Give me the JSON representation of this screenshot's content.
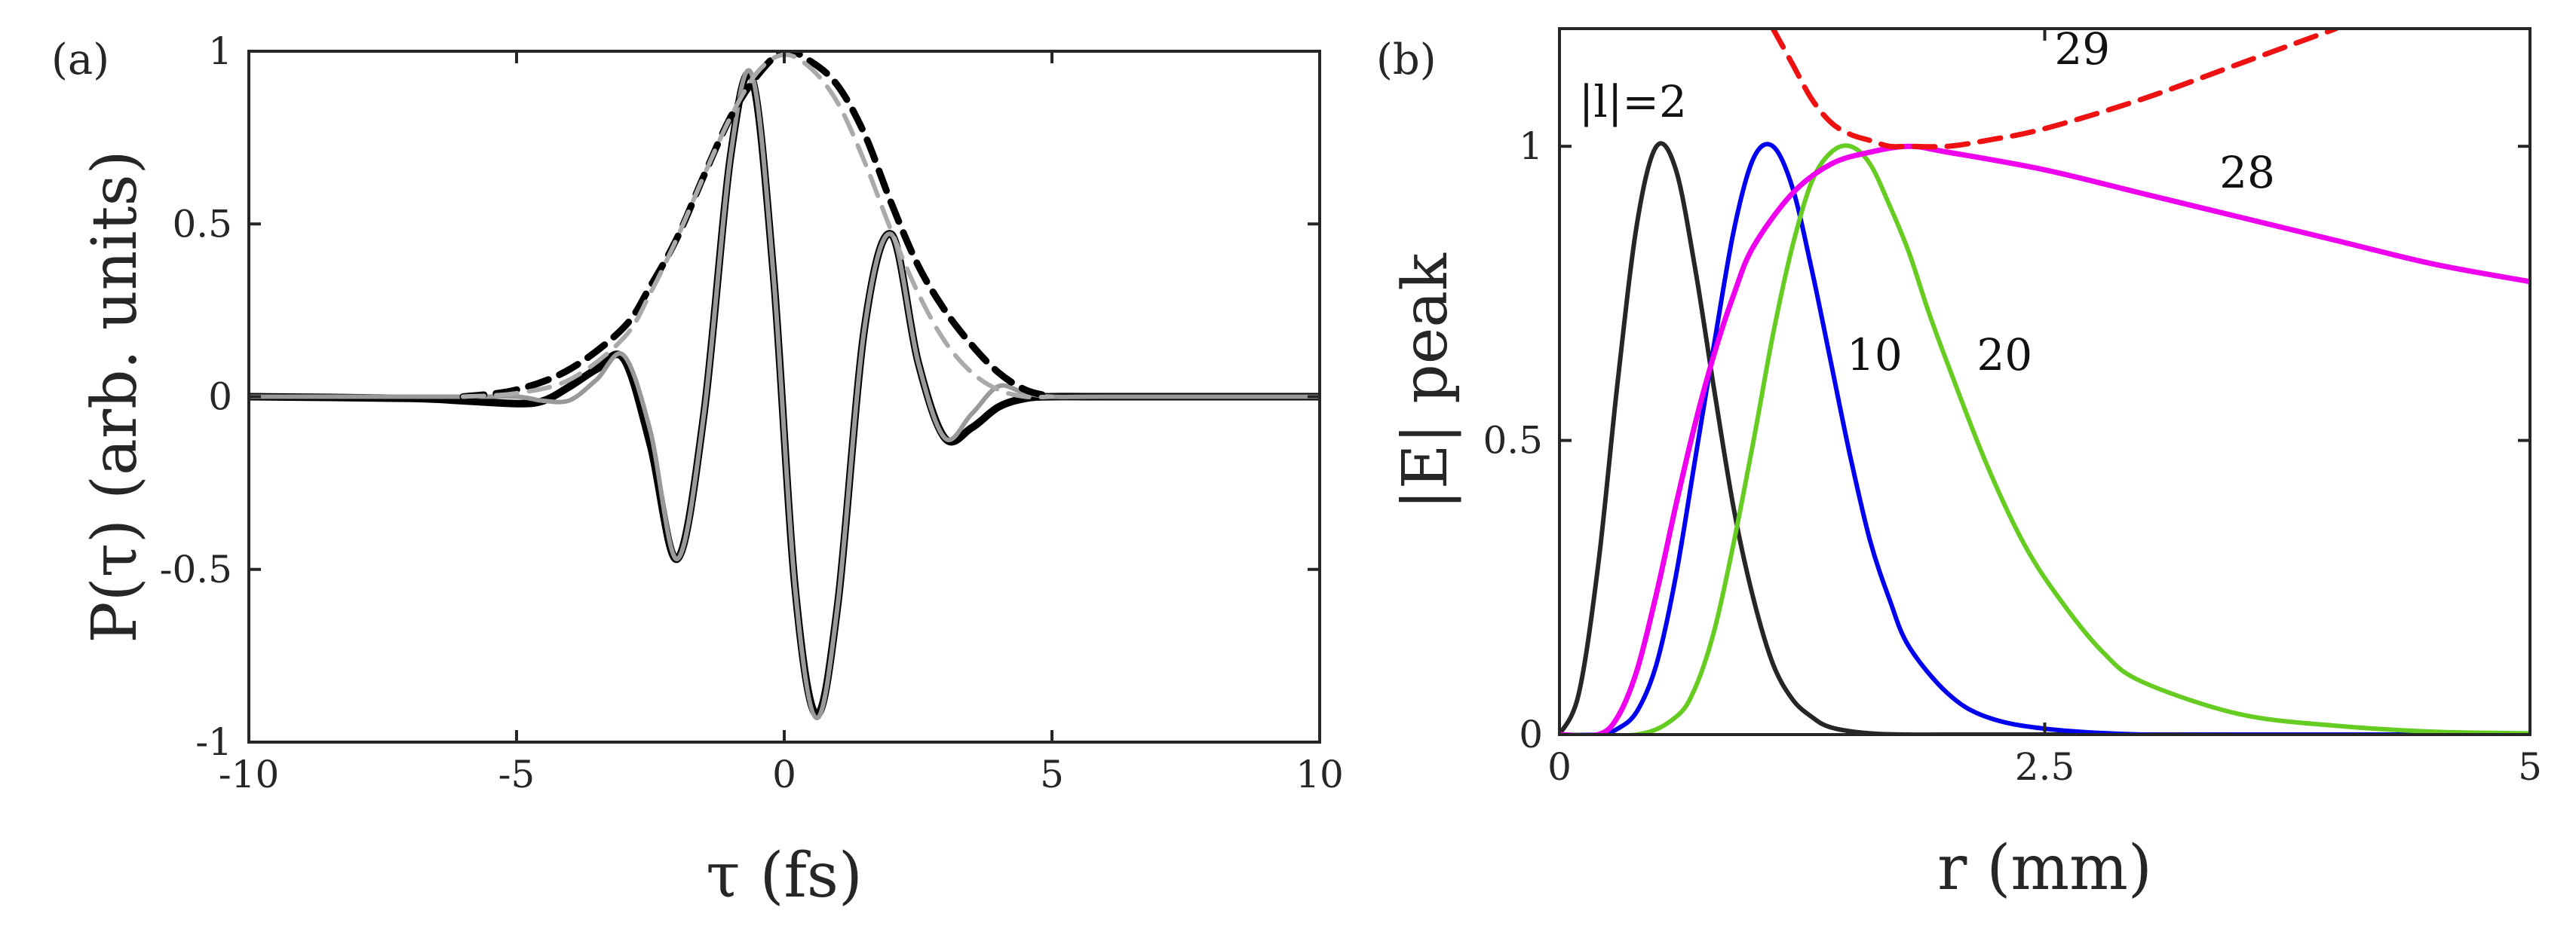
{
  "chart_data": [
    {
      "type": "line",
      "panel_label": "(a)",
      "xlabel": "τ (fs)",
      "ylabel": "P(τ) (arb. units)",
      "xlim": [
        -10,
        10
      ],
      "ylim": [
        -1,
        1
      ],
      "xticks": [
        -10,
        -5,
        0,
        5,
        10
      ],
      "xtick_labels": [
        "-10",
        "-5",
        "0",
        "5",
        "10"
      ],
      "yticks": [
        -1,
        -0.5,
        0,
        0.5,
        1
      ],
      "ytick_labels": [
        "-1",
        "-0.5",
        "0",
        "0.5",
        "1"
      ],
      "grid": false,
      "series": [
        {
          "name": "black solid",
          "color": "#000000",
          "style": "solid",
          "x": [
            -10,
            -7,
            -6,
            -5,
            -4.5,
            -4,
            -3.5,
            -3,
            -2.5,
            -2,
            -1.5,
            -1,
            -0.6,
            -0.2,
            0.2,
            0.6,
            1,
            1.5,
            2,
            2.5,
            3,
            3.5,
            4,
            4.5,
            5,
            6,
            10
          ],
          "y": [
            0,
            -0.005,
            -0.012,
            -0.02,
            -0.012,
            0.03,
            0.08,
            0.11,
            -0.14,
            -0.47,
            -0.05,
            0.7,
            0.92,
            0.35,
            -0.55,
            -0.92,
            -0.6,
            0.2,
            0.47,
            0.1,
            -0.12,
            -0.09,
            -0.03,
            -0.005,
            0,
            0,
            0
          ]
        },
        {
          "name": "gray solid",
          "color": "#999999",
          "style": "solid",
          "x": [
            -10,
            -6,
            -5,
            -4.5,
            -4,
            -3.5,
            -3,
            -2.5,
            -2,
            -1.5,
            -1,
            -0.6,
            -0.2,
            0.2,
            0.6,
            1,
            1.5,
            2,
            2.5,
            3,
            3.5,
            4,
            4.5,
            5,
            6,
            10
          ],
          "y": [
            0,
            0,
            0,
            -0.012,
            -0.01,
            0.05,
            0.12,
            -0.1,
            -0.47,
            -0.05,
            0.7,
            0.93,
            0.35,
            -0.55,
            -0.93,
            -0.6,
            0.2,
            0.47,
            0.1,
            -0.12,
            -0.05,
            0.03,
            0.01,
            0,
            0,
            0
          ]
        },
        {
          "name": "black dashed envelope",
          "color": "#000000",
          "style": "dashed",
          "x": [
            -6,
            -5,
            -4,
            -3,
            -2.5,
            -2,
            -1.5,
            -1,
            -0.5,
            0,
            0.5,
            1,
            1.5,
            2,
            2.5,
            3,
            3.5,
            4,
            4.5,
            5
          ],
          "y": [
            0,
            0.02,
            0.08,
            0.2,
            0.32,
            0.46,
            0.64,
            0.81,
            0.93,
            1,
            0.97,
            0.9,
            0.76,
            0.56,
            0.38,
            0.25,
            0.15,
            0.07,
            0.02,
            0
          ]
        },
        {
          "name": "gray dashed envelope",
          "color": "#aaaaaa",
          "style": "dashed",
          "x": [
            -6,
            -5,
            -4,
            -3,
            -2.5,
            -2,
            -1.5,
            -1,
            -0.5,
            0,
            0.5,
            1,
            1.5,
            2,
            2.5,
            3,
            3.5,
            4,
            4.5,
            5
          ],
          "y": [
            0,
            0.01,
            0.05,
            0.17,
            0.3,
            0.46,
            0.64,
            0.81,
            0.94,
            0.99,
            0.95,
            0.85,
            0.68,
            0.48,
            0.3,
            0.16,
            0.07,
            0.02,
            0,
            0
          ]
        }
      ],
      "annotations": []
    },
    {
      "type": "line",
      "panel_label": "(b)",
      "xlabel": "r (mm)",
      "ylabel": "|E| peak",
      "xlim": [
        0,
        5
      ],
      "ylim": [
        0,
        1.2
      ],
      "xticks": [
        0,
        2.5,
        5
      ],
      "xtick_labels": [
        "0",
        "2.5",
        "5"
      ],
      "yticks": [
        0,
        0.5,
        1
      ],
      "ytick_labels": [
        "0",
        "0.5",
        "1"
      ],
      "grid": false,
      "series": [
        {
          "name": "|l|=2",
          "color": "#262626",
          "style": "solid",
          "x": [
            0,
            0.1,
            0.2,
            0.3,
            0.4,
            0.5,
            0.6,
            0.7,
            0.8,
            0.9,
            1.0,
            1.1,
            1.2,
            1.3,
            1.4,
            1.6,
            1.8,
            2.0,
            2.5,
            3.0,
            5.0
          ],
          "y": [
            0,
            0.07,
            0.29,
            0.6,
            0.87,
            1.0,
            0.96,
            0.79,
            0.58,
            0.38,
            0.23,
            0.12,
            0.06,
            0.03,
            0.012,
            0.002,
            0,
            0,
            0,
            0,
            0
          ]
        },
        {
          "name": "10",
          "color": "#0000ee",
          "style": "solid",
          "x": [
            0,
            0.2,
            0.3,
            0.4,
            0.5,
            0.6,
            0.7,
            0.8,
            0.9,
            1.0,
            1.1,
            1.2,
            1.3,
            1.4,
            1.5,
            1.6,
            1.7,
            1.8,
            2.0,
            2.2,
            2.5,
            3.0,
            3.5,
            5.0
          ],
          "y": [
            0,
            0,
            0.01,
            0.04,
            0.12,
            0.27,
            0.47,
            0.67,
            0.86,
            0.98,
            1.0,
            0.93,
            0.79,
            0.63,
            0.47,
            0.33,
            0.23,
            0.15,
            0.07,
            0.03,
            0.01,
            0,
            0,
            0
          ]
        },
        {
          "name": "20",
          "color": "#66cc22",
          "style": "solid",
          "x": [
            0,
            0.4,
            0.6,
            0.7,
            0.8,
            0.9,
            1.0,
            1.1,
            1.2,
            1.3,
            1.4,
            1.5,
            1.6,
            1.7,
            1.8,
            1.9,
            2.0,
            2.2,
            2.4,
            2.6,
            2.8,
            3.0,
            3.5,
            4.0,
            4.5,
            5.0
          ],
          "y": [
            0,
            0,
            0.03,
            0.08,
            0.18,
            0.33,
            0.5,
            0.68,
            0.83,
            0.94,
            0.99,
            1.0,
            0.97,
            0.9,
            0.82,
            0.72,
            0.63,
            0.46,
            0.32,
            0.22,
            0.14,
            0.09,
            0.035,
            0.015,
            0.005,
            0.002
          ]
        },
        {
          "name": "28",
          "color": "#ee00ee",
          "style": "solid",
          "x": [
            0,
            0.2,
            0.3,
            0.4,
            0.5,
            0.6,
            0.7,
            0.8,
            0.9,
            1.0,
            1.2,
            1.4,
            1.6,
            1.8,
            2.0,
            2.5,
            3.0,
            3.5,
            4.0,
            4.5,
            5.0
          ],
          "y": [
            0,
            0,
            0.03,
            0.11,
            0.24,
            0.39,
            0.53,
            0.65,
            0.75,
            0.83,
            0.92,
            0.97,
            0.99,
            1.0,
            0.99,
            0.96,
            0.92,
            0.88,
            0.84,
            0.8,
            0.77
          ]
        },
        {
          "name": "29",
          "color": "#ee1111",
          "style": "dashed",
          "x": [
            1.1,
            1.2,
            1.3,
            1.4,
            1.5,
            1.6,
            1.7,
            1.8,
            2.0,
            2.2,
            2.5,
            3.0,
            3.5,
            4.0
          ],
          "y": [
            1.2,
            1.14,
            1.08,
            1.04,
            1.02,
            1.01,
            1.0,
            1.0,
            1.0,
            1.01,
            1.03,
            1.08,
            1.14,
            1.2
          ]
        }
      ],
      "annotations": [
        {
          "text": "|l|=2",
          "x": 0.1,
          "y": 1.05
        },
        {
          "text": "29",
          "x": 2.55,
          "y": 1.14
        },
        {
          "text": "28",
          "x": 3.4,
          "y": 0.93
        },
        {
          "text": "10",
          "x": 1.48,
          "y": 0.62
        },
        {
          "text": "20",
          "x": 2.15,
          "y": 0.62
        }
      ]
    }
  ]
}
